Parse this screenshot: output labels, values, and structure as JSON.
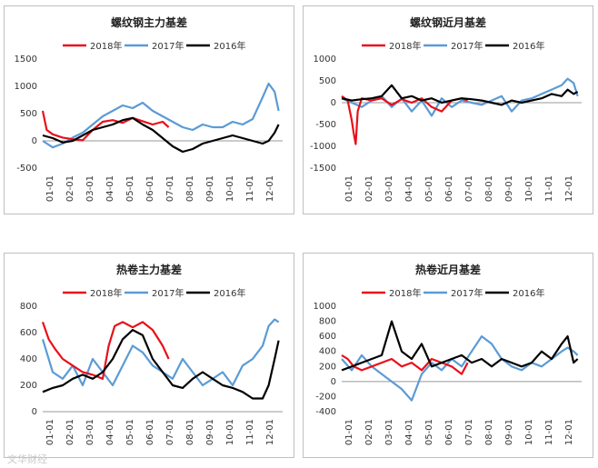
{
  "legend_series": [
    "2018年",
    "2017年",
    "2016年"
  ],
  "colors": {
    "2018年": "#e8101a",
    "2017年": "#5b9bd5",
    "2016年": "#000000"
  },
  "watermark": "文华财经",
  "chart_data": [
    {
      "type": "line",
      "title": "螺纹钢主力基差",
      "x_ticks": [
        "01-01",
        "02-01",
        "03-01",
        "04-01",
        "05-01",
        "06-01",
        "07-01",
        "08-01",
        "09-01",
        "10-01",
        "11-01",
        "12-01"
      ],
      "ylim": [
        -500,
        1500
      ],
      "y_ticks": [
        -500,
        0,
        500,
        1000,
        1500
      ],
      "series": [
        {
          "name": "2018年",
          "x": [
            0,
            0.2,
            0.5,
            1,
            1.5,
            2,
            2.5,
            3,
            3.5,
            4,
            4.5,
            5,
            5.5,
            6,
            6.3
          ],
          "y": [
            550,
            200,
            120,
            60,
            30,
            10,
            200,
            350,
            380,
            330,
            420,
            360,
            300,
            350,
            250
          ]
        },
        {
          "name": "2017年",
          "x": [
            0,
            0.5,
            1,
            1.5,
            2,
            2.5,
            3,
            3.5,
            4,
            4.5,
            5,
            5.5,
            6,
            6.5,
            7,
            7.5,
            8,
            8.5,
            9,
            9.5,
            10,
            10.5,
            11,
            11.3,
            11.6,
            11.8
          ],
          "y": [
            0,
            -120,
            -50,
            60,
            150,
            300,
            450,
            550,
            650,
            600,
            700,
            550,
            450,
            350,
            250,
            200,
            300,
            250,
            250,
            350,
            300,
            400,
            800,
            1050,
            900,
            550
          ]
        },
        {
          "name": "2016年",
          "x": [
            0,
            0.5,
            1,
            1.5,
            2,
            2.5,
            3,
            3.5,
            4,
            4.5,
            5,
            5.5,
            6,
            6.5,
            7,
            7.5,
            8,
            8.5,
            9,
            9.5,
            10,
            10.5,
            11,
            11.3,
            11.6,
            11.8
          ],
          "y": [
            100,
            50,
            -30,
            0,
            100,
            200,
            250,
            300,
            380,
            420,
            300,
            200,
            50,
            -100,
            -200,
            -150,
            -50,
            0,
            50,
            100,
            50,
            0,
            -50,
            0,
            150,
            300
          ]
        }
      ]
    },
    {
      "type": "line",
      "title": "螺纹钢近月基差",
      "x_ticks": [
        "01-01",
        "02-01",
        "03-01",
        "04-01",
        "05-01",
        "06-01",
        "07-01",
        "08-01",
        "09-01",
        "10-01",
        "11-01",
        "12-01"
      ],
      "ylim": [
        -1500,
        1000
      ],
      "y_ticks": [
        -1500,
        -1000,
        -500,
        0,
        500,
        1000
      ],
      "series": [
        {
          "name": "2018年",
          "x": [
            0,
            0.3,
            0.5,
            0.6,
            0.7,
            0.8,
            1,
            1.5,
            2,
            2.5,
            3,
            3.5,
            4,
            4.5,
            5,
            5.5,
            6,
            6.3
          ],
          "y": [
            150,
            50,
            -400,
            -700,
            -950,
            -200,
            100,
            50,
            100,
            -50,
            80,
            0,
            100,
            -100,
            -200,
            50,
            100,
            50
          ]
        },
        {
          "name": "2017年",
          "x": [
            0,
            0.5,
            1,
            1.5,
            2,
            2.5,
            3,
            3.5,
            4,
            4.5,
            5,
            5.5,
            6,
            6.5,
            7,
            7.5,
            8,
            8.5,
            9,
            9.5,
            10,
            10.5,
            11,
            11.3,
            11.6,
            11.8
          ],
          "y": [
            100,
            0,
            -100,
            50,
            150,
            -100,
            100,
            -200,
            50,
            -300,
            100,
            -100,
            50,
            0,
            -50,
            50,
            150,
            -200,
            50,
            100,
            200,
            300,
            400,
            550,
            450,
            150
          ]
        },
        {
          "name": "2016年",
          "x": [
            0,
            0.5,
            1,
            1.5,
            2,
            2.5,
            3,
            3.5,
            4,
            4.5,
            5,
            5.5,
            6,
            6.5,
            7,
            7.5,
            8,
            8.5,
            9,
            9.5,
            10,
            10.5,
            11,
            11.3,
            11.6,
            11.8
          ],
          "y": [
            100,
            50,
            80,
            100,
            150,
            400,
            100,
            150,
            50,
            100,
            0,
            50,
            100,
            80,
            50,
            0,
            -50,
            50,
            0,
            50,
            100,
            200,
            150,
            300,
            200,
            250
          ]
        }
      ]
    },
    {
      "type": "line",
      "title": "热卷主力基差",
      "x_ticks": [
        "01-01",
        "02-01",
        "03-01",
        "04-01",
        "05-01",
        "06-01",
        "07-01",
        "08-01",
        "09-01",
        "10-01",
        "11-01",
        "12-01"
      ],
      "ylim": [
        0,
        800
      ],
      "y_ticks": [
        0,
        200,
        400,
        600,
        800
      ],
      "series": [
        {
          "name": "2018年",
          "x": [
            0,
            0.3,
            0.6,
            1,
            1.5,
            2,
            2.5,
            3,
            3.3,
            3.6,
            4,
            4.5,
            5,
            5.5,
            6,
            6.3
          ],
          "y": [
            680,
            550,
            480,
            400,
            350,
            300,
            280,
            250,
            500,
            650,
            680,
            640,
            680,
            620,
            500,
            400
          ]
        },
        {
          "name": "2017年",
          "x": [
            0,
            0.5,
            1,
            1.5,
            2,
            2.5,
            3,
            3.5,
            4,
            4.5,
            5,
            5.5,
            6,
            6.5,
            7,
            7.5,
            8,
            8.5,
            9,
            9.5,
            10,
            10.5,
            11,
            11.3,
            11.6,
            11.8
          ],
          "y": [
            550,
            300,
            250,
            350,
            200,
            400,
            300,
            200,
            350,
            500,
            450,
            350,
            300,
            250,
            400,
            300,
            200,
            250,
            300,
            200,
            350,
            400,
            500,
            650,
            700,
            680
          ]
        },
        {
          "name": "2016年",
          "x": [
            0,
            0.5,
            1,
            1.5,
            2,
            2.5,
            3,
            3.5,
            4,
            4.5,
            5,
            5.5,
            6,
            6.5,
            7,
            7.5,
            8,
            8.5,
            9,
            9.5,
            10,
            10.5,
            11,
            11.3,
            11.6,
            11.8
          ],
          "y": [
            150,
            180,
            200,
            250,
            280,
            250,
            300,
            400,
            550,
            620,
            580,
            400,
            300,
            200,
            180,
            250,
            300,
            250,
            200,
            180,
            150,
            100,
            100,
            200,
            400,
            540
          ]
        }
      ]
    },
    {
      "type": "line",
      "title": "热卷近月基差",
      "x_ticks": [
        "01-01",
        "02-01",
        "03-01",
        "04-01",
        "05-01",
        "06-01",
        "07-01",
        "08-01",
        "09-01",
        "10-01",
        "11-01",
        "12-01"
      ],
      "ylim": [
        -400,
        1000
      ],
      "y_ticks": [
        -400,
        -200,
        0,
        200,
        400,
        600,
        800,
        1000
      ],
      "series": [
        {
          "name": "2018年",
          "x": [
            0,
            0.3,
            0.6,
            1,
            1.5,
            2,
            2.5,
            3,
            3.5,
            4,
            4.5,
            5,
            5.5,
            6,
            6.3
          ],
          "y": [
            350,
            300,
            200,
            150,
            200,
            250,
            300,
            200,
            250,
            150,
            300,
            250,
            200,
            100,
            250
          ]
        },
        {
          "name": "2017年",
          "x": [
            0,
            0.5,
            1,
            1.5,
            2,
            2.5,
            3,
            3.5,
            4,
            4.5,
            5,
            5.5,
            6,
            6.5,
            7,
            7.5,
            8,
            8.5,
            9,
            9.5,
            10,
            10.5,
            11,
            11.3,
            11.6,
            11.8
          ],
          "y": [
            300,
            150,
            350,
            200,
            100,
            0,
            -100,
            -250,
            100,
            250,
            150,
            300,
            200,
            400,
            600,
            500,
            300,
            200,
            150,
            250,
            200,
            300,
            400,
            450,
            400,
            350
          ]
        },
        {
          "name": "2016年",
          "x": [
            0,
            0.5,
            1,
            1.5,
            2,
            2.5,
            3,
            3.5,
            4,
            4.5,
            5,
            5.5,
            6,
            6.5,
            7,
            7.5,
            8,
            8.5,
            9,
            9.5,
            10,
            10.5,
            11,
            11.3,
            11.6,
            11.8
          ],
          "y": [
            150,
            200,
            250,
            300,
            350,
            800,
            400,
            300,
            500,
            200,
            250,
            300,
            350,
            250,
            300,
            200,
            300,
            250,
            200,
            250,
            400,
            300,
            500,
            600,
            250,
            300
          ]
        }
      ]
    }
  ]
}
